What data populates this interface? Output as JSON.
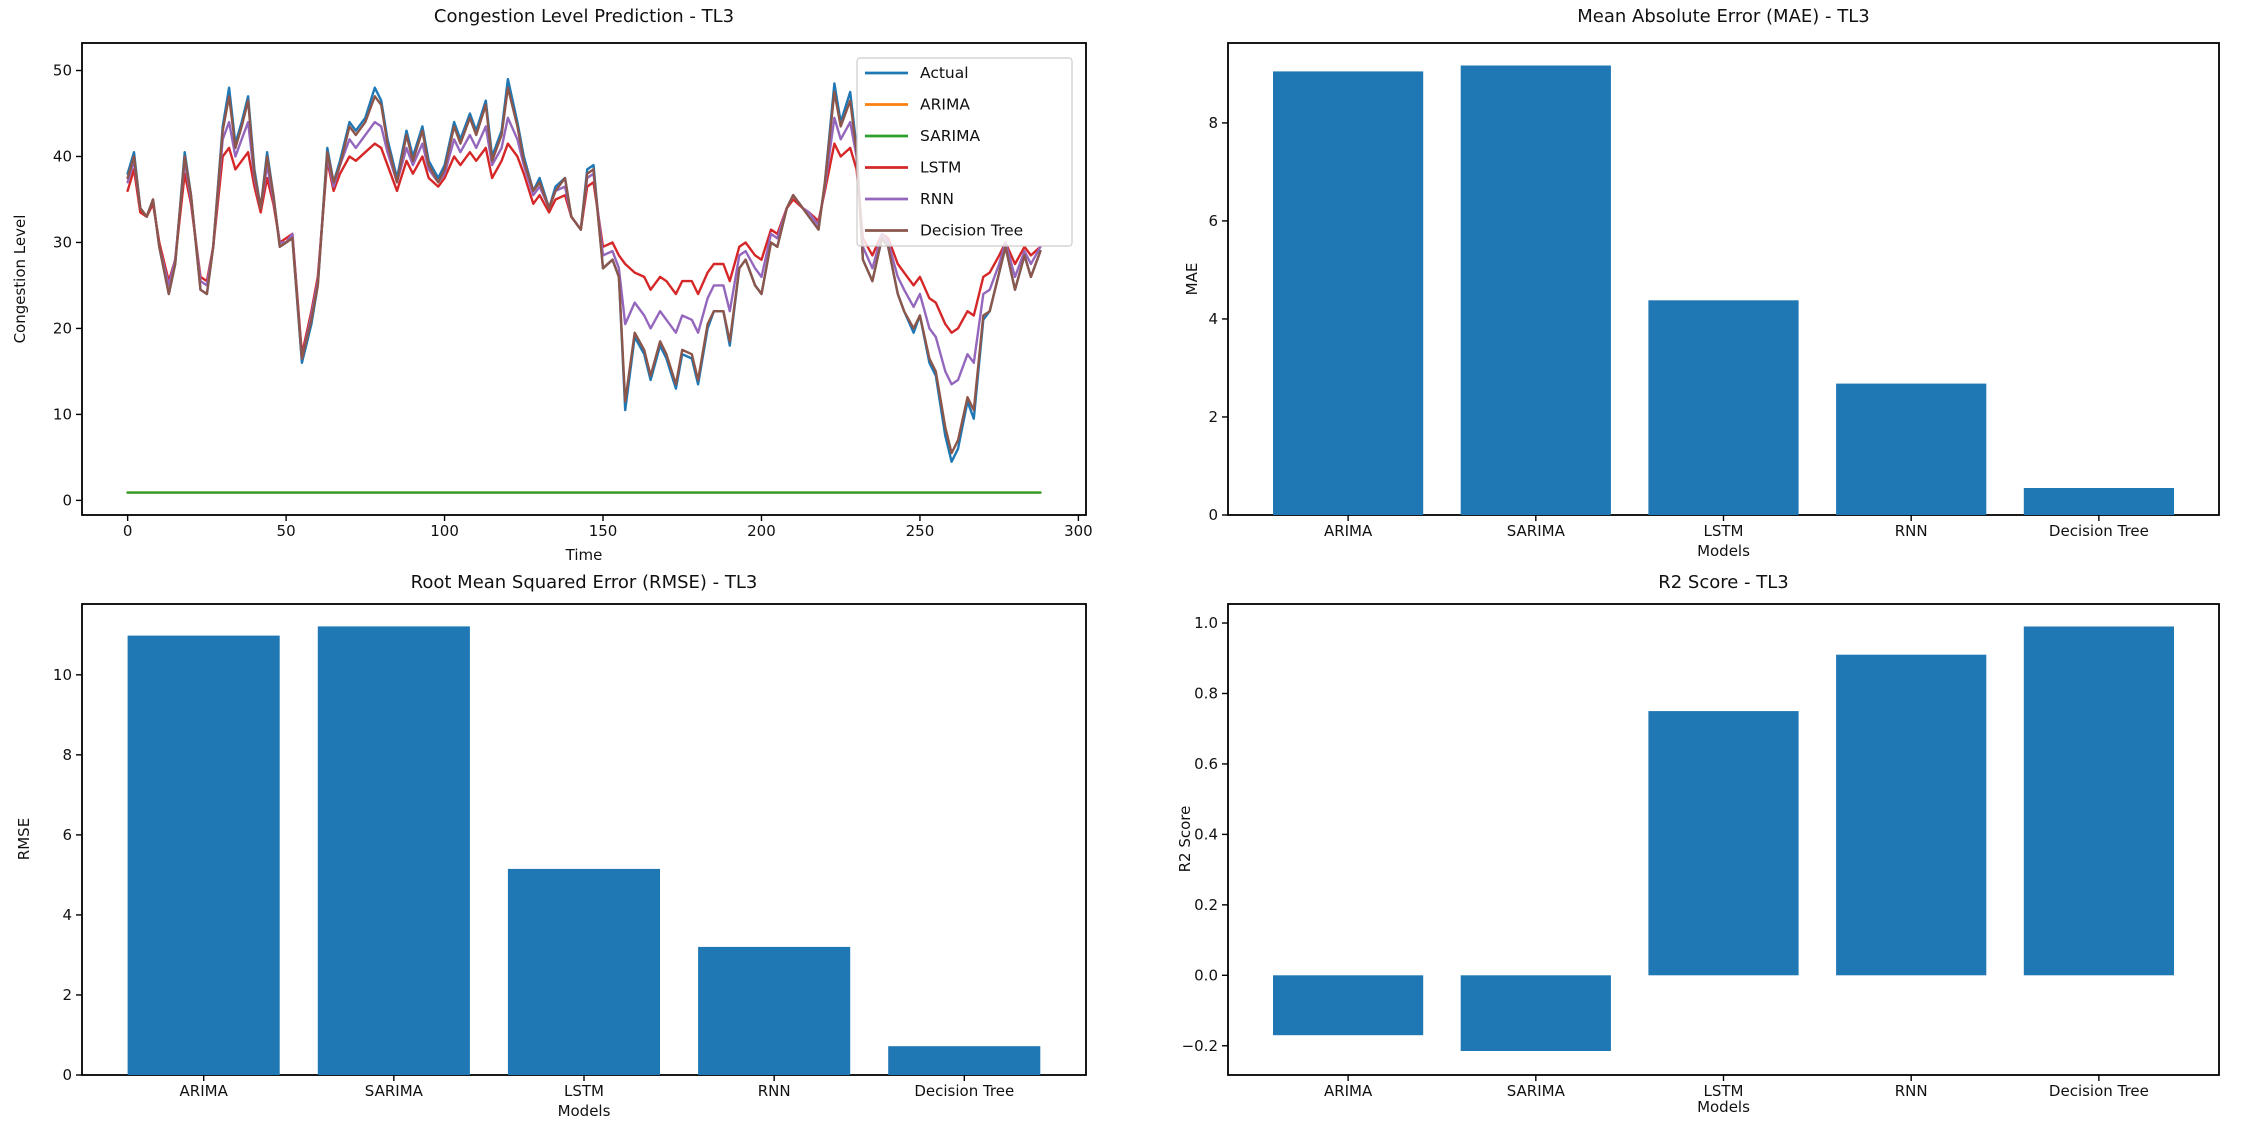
{
  "chart_data": [
    {
      "type": "line",
      "title": "Congestion Level Prediction - TL3",
      "xlabel": "Time",
      "ylabel": "Congestion Level",
      "xlim": [
        -14.4,
        302.4
      ],
      "ylim": [
        -1.7,
        53.2
      ],
      "xticks": [
        0,
        50,
        100,
        150,
        200,
        250,
        300
      ],
      "xtick_labels": [
        "0",
        "50",
        "100",
        "150",
        "200",
        "250",
        "300"
      ],
      "yticks": [
        0,
        10,
        20,
        30,
        40,
        50
      ],
      "ytick_labels": [
        "0",
        "10",
        "20",
        "30",
        "40",
        "50"
      ],
      "legend_position": "upper right",
      "grid": false,
      "x": [
        0,
        2,
        4,
        6,
        8,
        10,
        13,
        15,
        18,
        20,
        23,
        25,
        27,
        30,
        32,
        34,
        36,
        38,
        40,
        42,
        44,
        46,
        48,
        50,
        52,
        55,
        58,
        60,
        63,
        65,
        67,
        70,
        72,
        75,
        78,
        80,
        82,
        85,
        88,
        90,
        93,
        95,
        98,
        100,
        103,
        105,
        108,
        110,
        113,
        115,
        118,
        120,
        123,
        125,
        128,
        130,
        133,
        135,
        138,
        140,
        143,
        145,
        147,
        150,
        153,
        155,
        157,
        160,
        163,
        165,
        168,
        170,
        173,
        175,
        178,
        180,
        183,
        185,
        188,
        190,
        193,
        195,
        198,
        200,
        203,
        205,
        208,
        210,
        213,
        215,
        218,
        220,
        223,
        225,
        228,
        230,
        232,
        235,
        238,
        240,
        243,
        245,
        248,
        250,
        253,
        255,
        258,
        260,
        262,
        265,
        267,
        270,
        272,
        275,
        277,
        280,
        283,
        285,
        288
      ],
      "series": [
        {
          "name": "Actual",
          "color": "#1f77b4",
          "values": [
            38,
            40.5,
            34,
            33,
            35,
            29.5,
            24,
            27.5,
            40.5,
            35.5,
            24.5,
            24,
            29.5,
            43.5,
            48,
            41.5,
            44,
            47,
            38.5,
            34,
            40.5,
            35.5,
            29.5,
            30,
            30.5,
            16,
            20.5,
            25,
            41,
            37,
            39.5,
            44,
            43,
            44.5,
            48,
            46.5,
            42,
            37.5,
            43,
            40,
            43.5,
            39.5,
            37.5,
            39,
            44,
            42,
            45,
            43,
            46.5,
            40,
            43,
            49,
            44,
            40,
            36,
            37.5,
            34,
            36.5,
            37.5,
            33,
            31.5,
            38.5,
            39,
            27,
            28,
            26,
            10.5,
            19,
            17,
            14,
            18,
            16.5,
            13,
            17,
            16.5,
            13.5,
            20,
            22,
            22,
            18,
            27,
            28,
            25,
            24,
            30,
            29.5,
            34,
            35.5,
            34,
            33,
            31.5,
            37,
            48.5,
            44,
            47.5,
            41,
            28,
            25.5,
            30.5,
            29.5,
            24,
            22,
            19.5,
            21.5,
            16,
            14.5,
            7.5,
            4.5,
            6,
            11.5,
            9.5,
            21,
            22,
            26.5,
            29.5,
            24.5,
            28.5,
            26,
            29
          ]
        },
        {
          "name": "ARIMA",
          "color": "#ff7f0e",
          "constant": 0.9
        },
        {
          "name": "SARIMA",
          "color": "#2ca02c",
          "constant": 0.9
        },
        {
          "name": "LSTM",
          "color": "#d62728",
          "values": [
            36,
            38.5,
            33.5,
            33,
            34.5,
            30,
            25.5,
            28,
            38,
            34.5,
            26,
            25.5,
            29.5,
            40,
            41,
            38.5,
            39.5,
            40.5,
            36.5,
            33.5,
            37.5,
            34.5,
            30,
            30.5,
            31,
            17,
            22,
            26,
            39.5,
            36,
            38,
            40,
            39.5,
            40.5,
            41.5,
            41,
            39,
            36,
            39.5,
            38,
            40,
            37.5,
            36.5,
            37.5,
            40,
            39,
            40.5,
            39.5,
            41,
            37.5,
            39.5,
            41.5,
            40,
            38,
            34.5,
            35.5,
            33.5,
            35,
            35.5,
            33,
            31.5,
            36.5,
            37,
            29.5,
            30,
            28.5,
            27.5,
            26.5,
            26,
            24.5,
            26,
            25.5,
            24,
            25.5,
            25.5,
            24,
            26.5,
            27.5,
            27.5,
            25.5,
            29.5,
            30,
            28.5,
            28,
            31.5,
            31,
            34,
            35,
            34,
            33.5,
            32.5,
            36,
            41.5,
            40,
            41,
            38.5,
            30.5,
            28.5,
            31,
            30.5,
            27.5,
            26.5,
            25,
            26,
            23.5,
            23,
            20.5,
            19.5,
            20,
            22,
            21.5,
            26,
            26.5,
            28.5,
            30,
            27.5,
            29.5,
            28.5,
            29.5
          ]
        },
        {
          "name": "RNN",
          "color": "#9467bd",
          "values": [
            37,
            39.5,
            34,
            33,
            35,
            29.5,
            25,
            28,
            39.5,
            35,
            25.5,
            25,
            29.5,
            42,
            44,
            40,
            42,
            44,
            37.5,
            34,
            39,
            35,
            30,
            30,
            31,
            16.5,
            21.5,
            25.5,
            40,
            36.5,
            39,
            42,
            41,
            42.5,
            44,
            43.5,
            40.5,
            37,
            41,
            39,
            41.5,
            38.5,
            37,
            38,
            42,
            40.5,
            42.5,
            41,
            43.5,
            39,
            41,
            44.5,
            42,
            39,
            35.5,
            36.5,
            34,
            36,
            36.5,
            33,
            31.5,
            37.5,
            38,
            28.5,
            29,
            27,
            20.5,
            23,
            21.5,
            20,
            22,
            21,
            19.5,
            21.5,
            21,
            19.5,
            23.5,
            25,
            25,
            22,
            28.5,
            29,
            27,
            26,
            31,
            30.5,
            34,
            35.5,
            34,
            33.5,
            32,
            36.5,
            44.5,
            42,
            44,
            40,
            29.5,
            27,
            31,
            30,
            26,
            24.5,
            22.5,
            24,
            20,
            19,
            15,
            13.5,
            14,
            17,
            16,
            24,
            24.5,
            27.5,
            30,
            26,
            29,
            27.5,
            29.5
          ]
        },
        {
          "name": "Decision Tree",
          "color": "#8c564b",
          "values": [
            37.5,
            40,
            34,
            33,
            35,
            29.5,
            24,
            27.5,
            40,
            35.5,
            24.5,
            24,
            29.5,
            43,
            47,
            41,
            43.5,
            46.5,
            38,
            34,
            40,
            35.5,
            29.5,
            30,
            30.5,
            16.5,
            21,
            25,
            40.5,
            37,
            39,
            43.5,
            42.5,
            44,
            47,
            46,
            41.5,
            37,
            42.5,
            39.5,
            43,
            39,
            37,
            38.5,
            43.5,
            41.5,
            44.5,
            42.5,
            46,
            39.5,
            42.5,
            48,
            43.5,
            39.5,
            36,
            37,
            34,
            36,
            37.5,
            33,
            31.5,
            38,
            38.5,
            27,
            28,
            26,
            11.5,
            19.5,
            17.5,
            14.5,
            18.5,
            17,
            13.5,
            17.5,
            17,
            14,
            20.5,
            22,
            22,
            18.5,
            27,
            28,
            25,
            24,
            30,
            29.5,
            34,
            35.5,
            34,
            33,
            31.5,
            37,
            47.5,
            43.5,
            46.5,
            40.5,
            28,
            25.5,
            30.5,
            29.5,
            24,
            22,
            20,
            21.5,
            16.5,
            15,
            8.5,
            5.5,
            7,
            12,
            10.5,
            21.5,
            22,
            26.5,
            29.5,
            24.5,
            28.5,
            26,
            29
          ]
        }
      ]
    },
    {
      "type": "bar",
      "title": "Mean Absolute Error (MAE) - TL3",
      "xlabel": "Models",
      "ylabel": "MAE",
      "categories": [
        "ARIMA",
        "SARIMA",
        "LSTM",
        "RNN",
        "Decision Tree"
      ],
      "values": [
        9.05,
        9.17,
        4.38,
        2.68,
        0.55
      ],
      "bar_color": "#1f77b4",
      "ylim": [
        0,
        9.63
      ],
      "yticks": [
        0,
        2,
        4,
        6,
        8
      ],
      "ytick_labels": [
        "0",
        "2",
        "4",
        "6",
        "8"
      ],
      "grid": false
    },
    {
      "type": "bar",
      "title": "Root Mean Squared Error (RMSE) - TL3",
      "xlabel": "Models",
      "ylabel": "RMSE",
      "categories": [
        "ARIMA",
        "SARIMA",
        "LSTM",
        "RNN",
        "Decision Tree"
      ],
      "values": [
        10.98,
        11.21,
        5.15,
        3.2,
        0.72
      ],
      "bar_color": "#1f77b4",
      "ylim": [
        0,
        11.77
      ],
      "yticks": [
        0,
        2,
        4,
        6,
        8,
        10
      ],
      "ytick_labels": [
        "0",
        "2",
        "4",
        "6",
        "8",
        "10"
      ],
      "grid": false
    },
    {
      "type": "bar",
      "title": "R2 Score - TL3",
      "xlabel": "Models",
      "ylabel": "R2 Score",
      "categories": [
        "ARIMA",
        "SARIMA",
        "LSTM",
        "RNN",
        "Decision Tree"
      ],
      "values": [
        -0.17,
        -0.215,
        0.75,
        0.91,
        0.99
      ],
      "bar_color": "#1f77b4",
      "ylim": [
        -0.283,
        1.054
      ],
      "yticks": [
        -0.2,
        0.0,
        0.2,
        0.4,
        0.6,
        0.8,
        1.0
      ],
      "ytick_labels": [
        "−0.2",
        "0.0",
        "0.2",
        "0.4",
        "0.6",
        "0.8",
        "1.0"
      ],
      "grid": false
    }
  ]
}
